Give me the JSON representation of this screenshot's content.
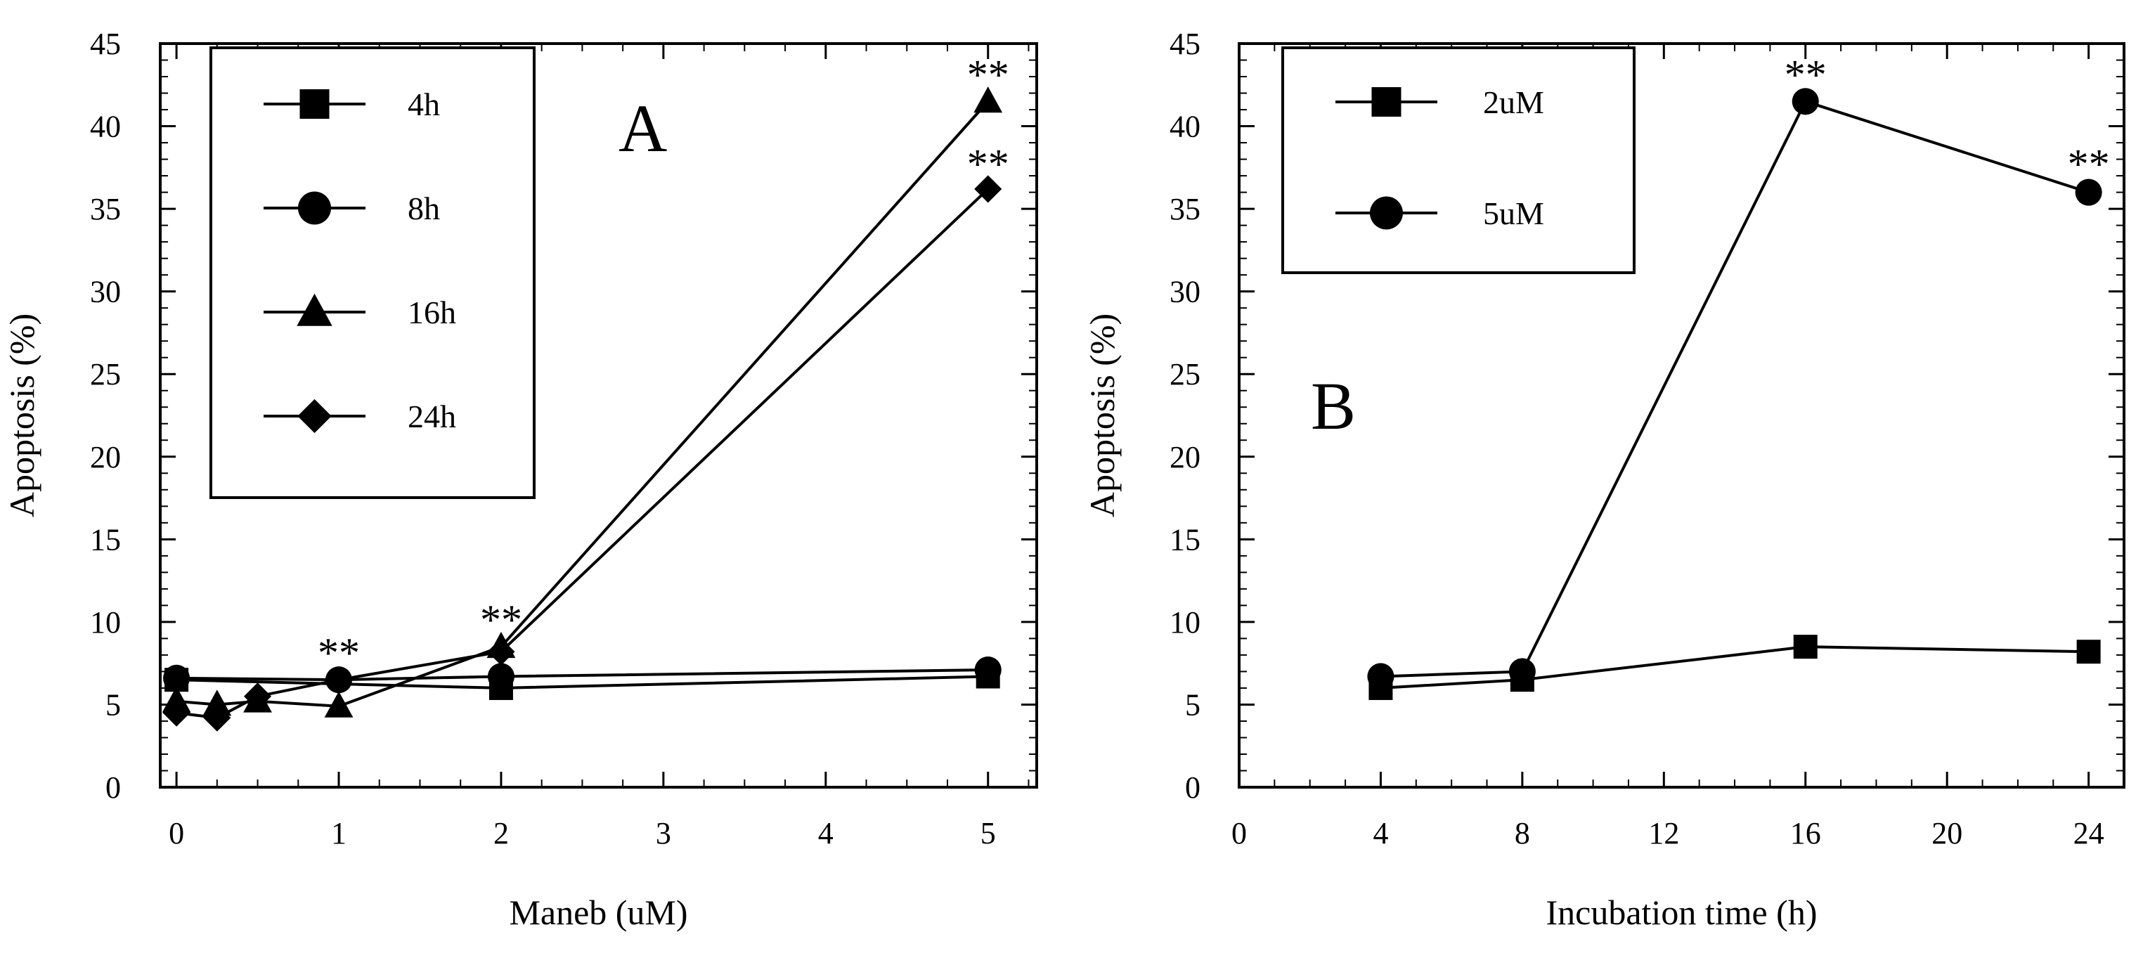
{
  "chart_data": [
    {
      "type": "line",
      "panel": "A",
      "xlabel": "Maneb (uM)",
      "ylabel": "Apoptosis (%)",
      "xlim": [
        -0.1,
        5.3
      ],
      "ylim": [
        0,
        45
      ],
      "xticks": [
        "0",
        "1",
        "2",
        "3",
        "4",
        "5"
      ],
      "yticks": [
        "0",
        "5",
        "10",
        "15",
        "20",
        "25",
        "30",
        "35",
        "40",
        "45"
      ],
      "legend_position": "top-left",
      "series": [
        {
          "name": "4h",
          "marker": "square",
          "x": [
            0,
            2,
            5
          ],
          "y": [
            6.5,
            6.0,
            6.7
          ]
        },
        {
          "name": "8h",
          "marker": "circle",
          "x": [
            0,
            1,
            2,
            5
          ],
          "y": [
            6.6,
            6.5,
            6.7,
            7.1
          ]
        },
        {
          "name": "16h",
          "marker": "triangle",
          "x": [
            0,
            0.25,
            0.5,
            1,
            2,
            5
          ],
          "y": [
            5.2,
            5.0,
            5.2,
            4.9,
            8.5,
            41.5
          ]
        },
        {
          "name": "24h",
          "marker": "diamond",
          "x": [
            0,
            0.25,
            0.5,
            1,
            2,
            5
          ],
          "y": [
            4.5,
            4.2,
            5.5,
            6.5,
            8.2,
            36.2
          ]
        }
      ],
      "annotations": [
        {
          "text": "**",
          "x": 1,
          "y": 8.2
        },
        {
          "text": "**",
          "x": 2,
          "y": 10.2
        },
        {
          "text": "**",
          "x": 5,
          "y": 43.2
        },
        {
          "text": "**",
          "x": 5,
          "y": 37.8
        }
      ]
    },
    {
      "type": "line",
      "panel": "B",
      "xlabel": "Incubation time (h)",
      "ylabel": "Apoptosis (%)",
      "xlim": [
        0,
        25
      ],
      "ylim": [
        0,
        45
      ],
      "xticks": [
        "0",
        "4",
        "8",
        "12",
        "16",
        "20",
        "24"
      ],
      "yticks": [
        "0",
        "5",
        "10",
        "15",
        "20",
        "25",
        "30",
        "35",
        "40",
        "45"
      ],
      "legend_position": "top-left",
      "series": [
        {
          "name": "2uM",
          "marker": "square",
          "x": [
            4,
            8,
            16,
            24
          ],
          "y": [
            6.0,
            6.5,
            8.5,
            8.2
          ]
        },
        {
          "name": "5uM",
          "marker": "circle",
          "x": [
            4,
            8,
            16,
            24
          ],
          "y": [
            6.7,
            7.0,
            41.5,
            36.0
          ]
        }
      ],
      "annotations": [
        {
          "text": "**",
          "x": 16,
          "y": 43.2
        },
        {
          "text": "**",
          "x": 24,
          "y": 37.8
        }
      ]
    }
  ]
}
